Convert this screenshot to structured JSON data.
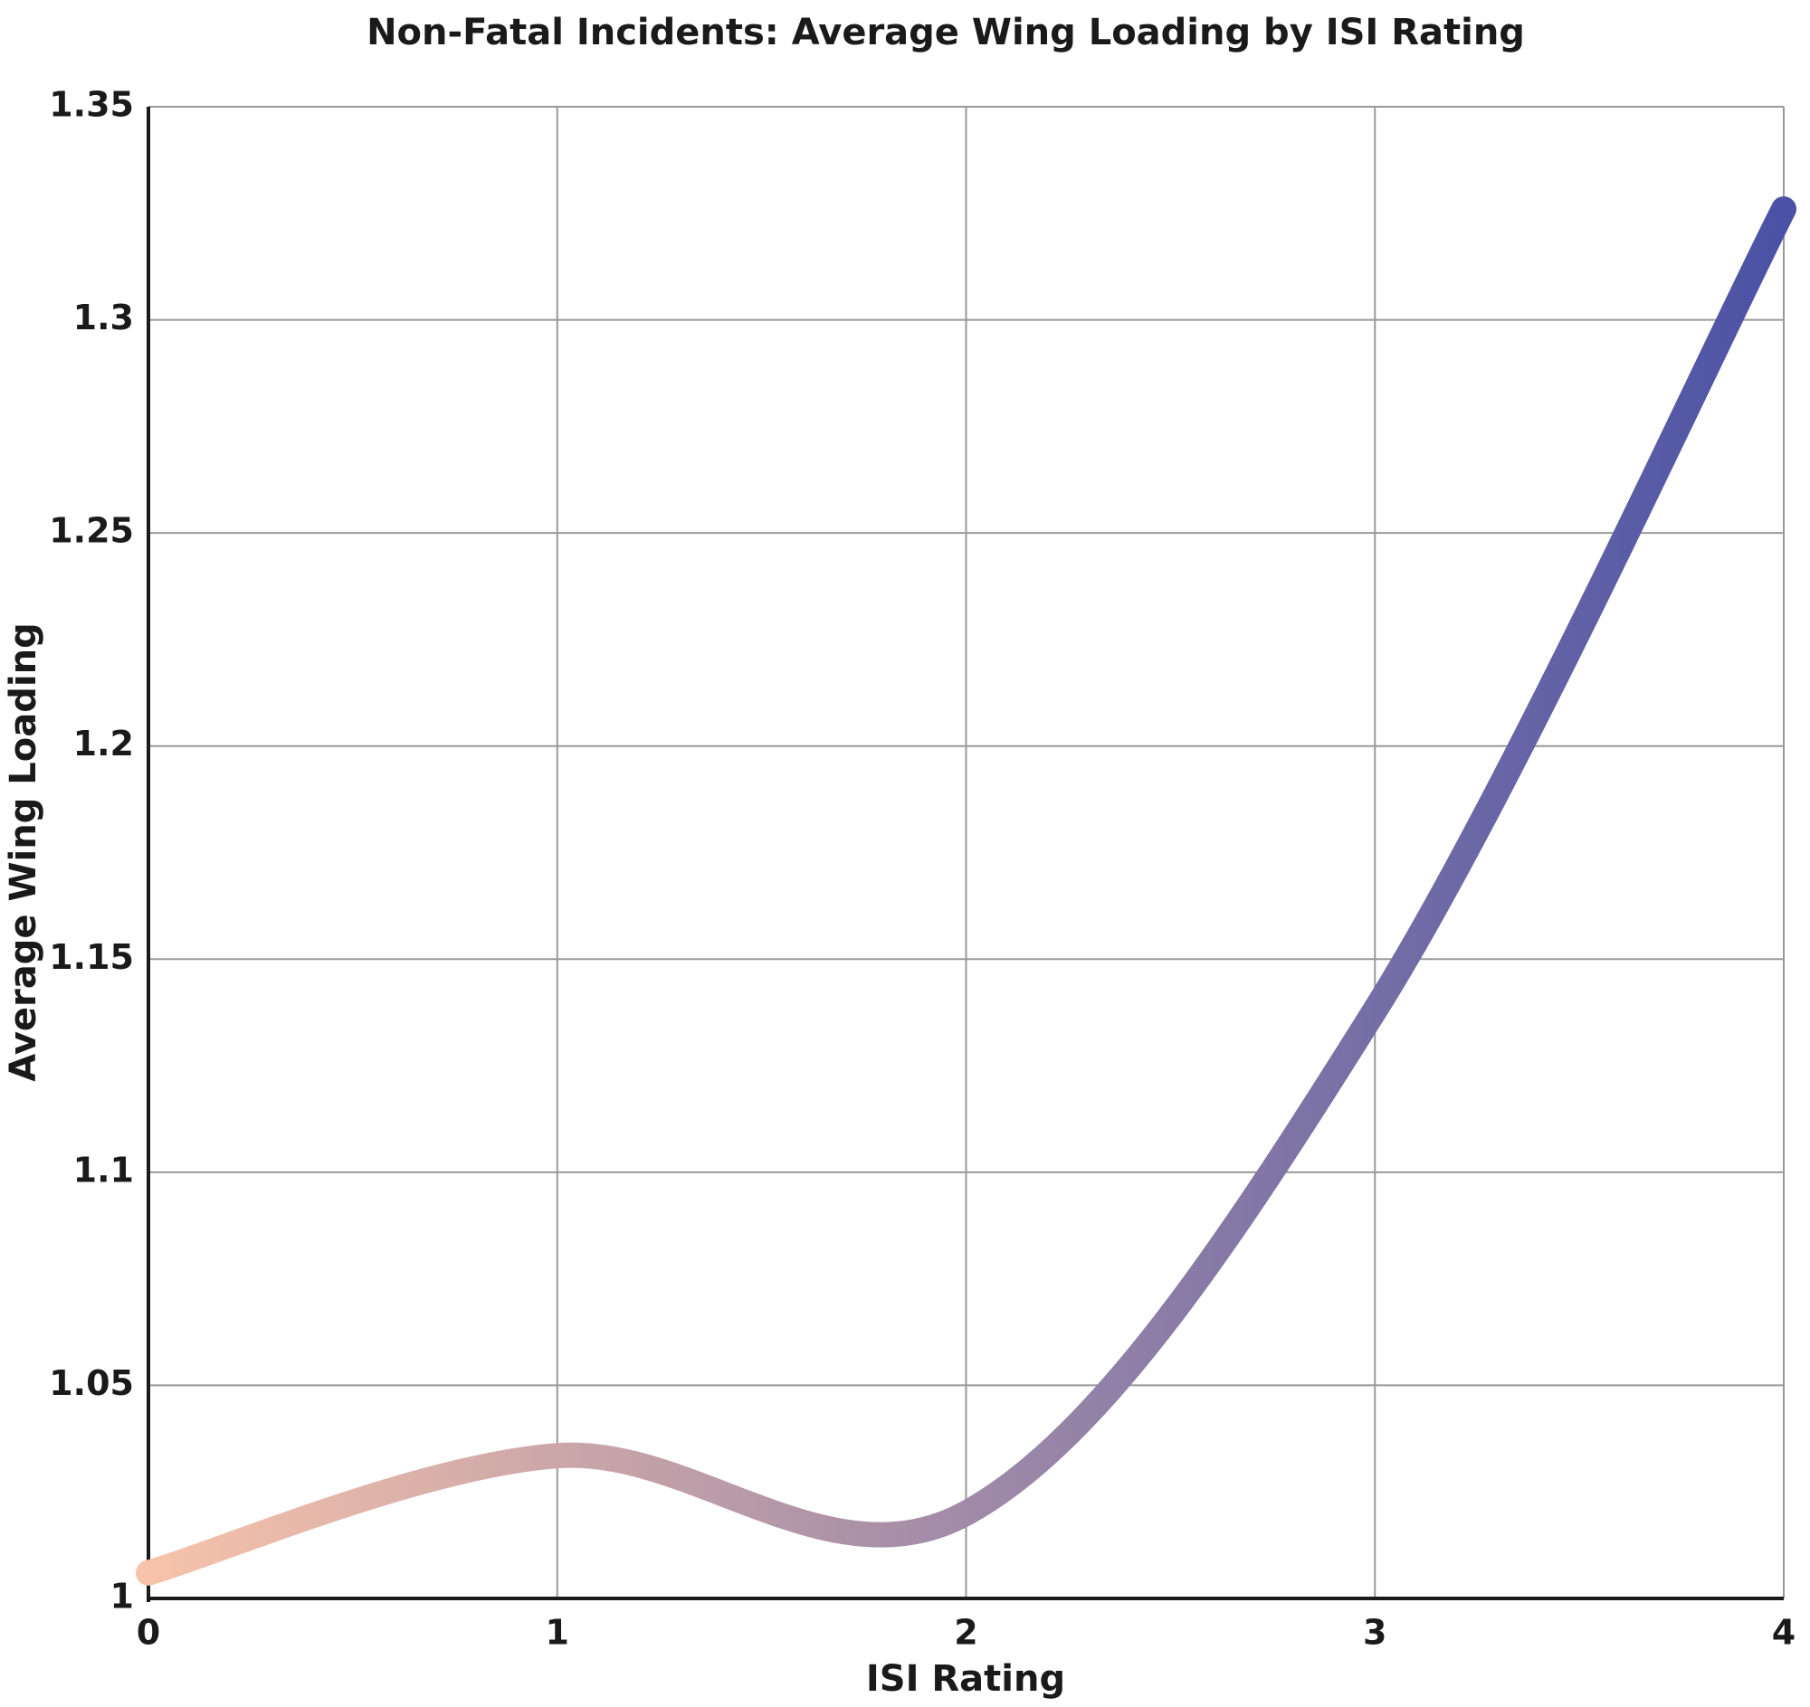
{
  "chart_data": {
    "type": "line",
    "title": "Non-Fatal Incidents: Average Wing Loading by ISI Rating",
    "x_label": "ISI Rating",
    "y_label": "Average Wing Loading",
    "x": [
      0,
      1,
      2,
      3,
      4
    ],
    "values": [
      1.006,
      1.0335,
      1.02,
      1.138,
      1.326
    ],
    "colors": [
      "#f7c3aa",
      "#4a52a5"
    ],
    "xlim": [
      0,
      4
    ],
    "xticks": [
      0,
      1,
      2,
      3,
      4
    ],
    "ylim": [
      1,
      1.35
    ],
    "yticks": [
      1,
      1.05,
      1.1,
      1.15,
      1.2,
      1.25,
      1.3,
      1.35
    ],
    "grid": true
  }
}
